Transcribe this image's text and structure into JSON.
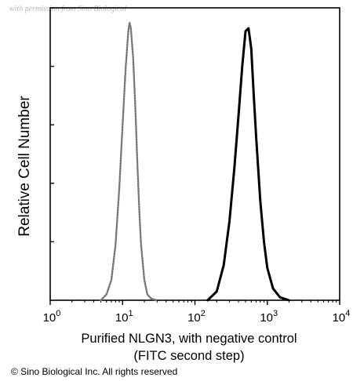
{
  "watermark": "with permission from Sino Biological",
  "copyright": "© Sino Biological Inc. All rights reserved",
  "chart_data": {
    "type": "line",
    "xscale": "log",
    "xlim": [
      1,
      10000
    ],
    "ylim": [
      0,
      100
    ],
    "xlabel": [
      "Purified NLGN3, with negative control",
      "(FITC second step)"
    ],
    "ylabel": "Relative Cell Number",
    "x_ticks": [
      {
        "base": "10",
        "exp": "0",
        "value": 1
      },
      {
        "base": "10",
        "exp": "1",
        "value": 10
      },
      {
        "base": "10",
        "exp": "2",
        "value": 100
      },
      {
        "base": "10",
        "exp": "3",
        "value": 1000
      },
      {
        "base": "10",
        "exp": "4",
        "value": 10000
      }
    ],
    "grid": false,
    "series": [
      {
        "style": "dotted",
        "color": "#777777",
        "x": [
          5,
          6,
          7,
          8,
          9,
          10,
          11,
          12,
          12.5,
          13,
          14,
          15,
          16,
          17,
          18,
          20,
          22,
          25,
          30
        ],
        "y": [
          0,
          2,
          7,
          19,
          38,
          60,
          79,
          92,
          95,
          93,
          83,
          66,
          47,
          31,
          19,
          7,
          2,
          0.5,
          0
        ]
      },
      {
        "style": "solid",
        "color": "#000000",
        "x": [
          150,
          200,
          250,
          300,
          350,
          400,
          450,
          500,
          550,
          600,
          650,
          700,
          800,
          900,
          1000,
          1200,
          1500,
          2000
        ],
        "y": [
          0,
          3,
          12,
          27,
          45,
          63,
          80,
          92,
          93,
          86,
          70,
          56,
          34,
          20,
          11,
          4,
          1,
          0
        ]
      }
    ]
  }
}
